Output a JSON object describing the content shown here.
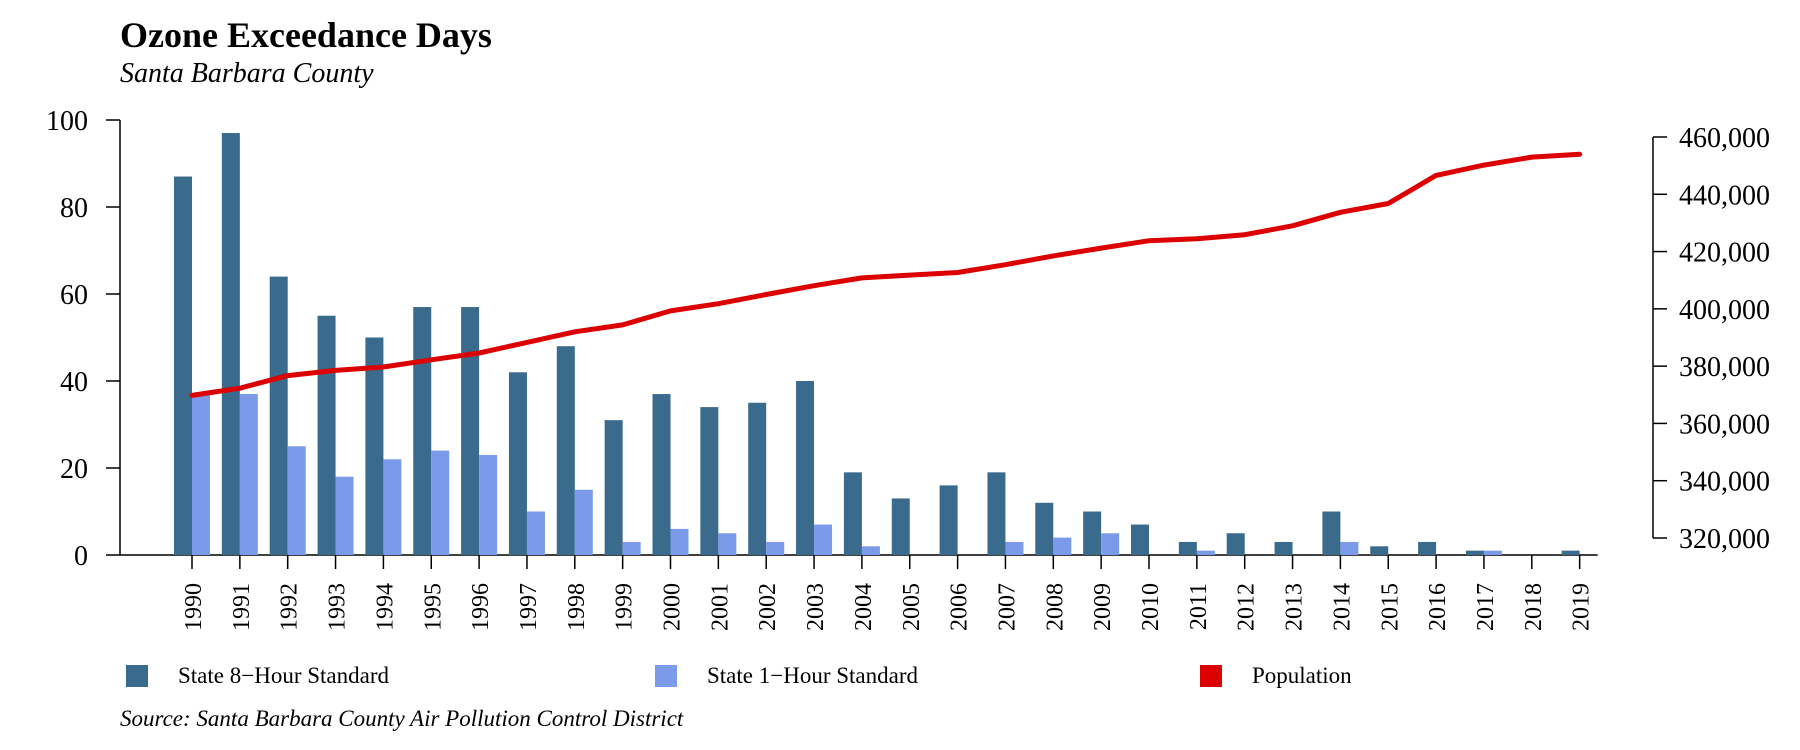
{
  "chart_data": {
    "type": "bar",
    "title": "Ozone Exceedance Days",
    "subtitle": "Santa Barbara County",
    "source": "Source: Santa Barbara County Air Pollution Control District",
    "categories": [
      "1990",
      "1991",
      "1992",
      "1993",
      "1994",
      "1995",
      "1996",
      "1997",
      "1998",
      "1999",
      "2000",
      "2001",
      "2002",
      "2003",
      "2004",
      "2005",
      "2006",
      "2007",
      "2008",
      "2009",
      "2010",
      "2011",
      "2012",
      "2013",
      "2014",
      "2015",
      "2016",
      "2017",
      "2018",
      "2019"
    ],
    "series": [
      {
        "name": "State 8−Hour Standard",
        "type": "bar",
        "axis": "left",
        "color": "#3a6a8c",
        "values": [
          87,
          97,
          64,
          55,
          50,
          57,
          57,
          42,
          48,
          31,
          37,
          34,
          35,
          40,
          19,
          13,
          16,
          19,
          12,
          10,
          7,
          3,
          5,
          3,
          10,
          2,
          3,
          1,
          0,
          1
        ]
      },
      {
        "name": "State 1−Hour Standard",
        "type": "bar",
        "axis": "left",
        "color": "#7b9aea",
        "values": [
          37,
          37,
          25,
          18,
          22,
          24,
          23,
          10,
          15,
          3,
          6,
          5,
          3,
          7,
          2,
          0,
          0,
          3,
          4,
          5,
          0,
          1,
          0,
          0,
          3,
          0,
          0,
          1,
          0,
          0
        ]
      },
      {
        "name": "Population",
        "type": "line",
        "axis": "right",
        "color": "#dd0000",
        "values": [
          369800,
          372300,
          376700,
          378500,
          379700,
          382200,
          384600,
          388300,
          392000,
          394400,
          399300,
          401800,
          405000,
          408100,
          410800,
          411800,
          412700,
          415400,
          418500,
          421200,
          423800,
          424500,
          425900,
          429000,
          433700,
          436800,
          446600,
          450200,
          453000,
          454000
        ]
      }
    ],
    "left_axis": {
      "ylim": [
        0,
        100
      ],
      "ticks": [
        0,
        20,
        40,
        60,
        80,
        100
      ]
    },
    "right_axis": {
      "ylim": [
        320000,
        460000
      ],
      "ticks": [
        "320,000",
        "340,000",
        "360,000",
        "380,000",
        "400,000",
        "420,000",
        "440,000",
        "460,000"
      ]
    },
    "legend_position": "bottom",
    "grid": false
  }
}
